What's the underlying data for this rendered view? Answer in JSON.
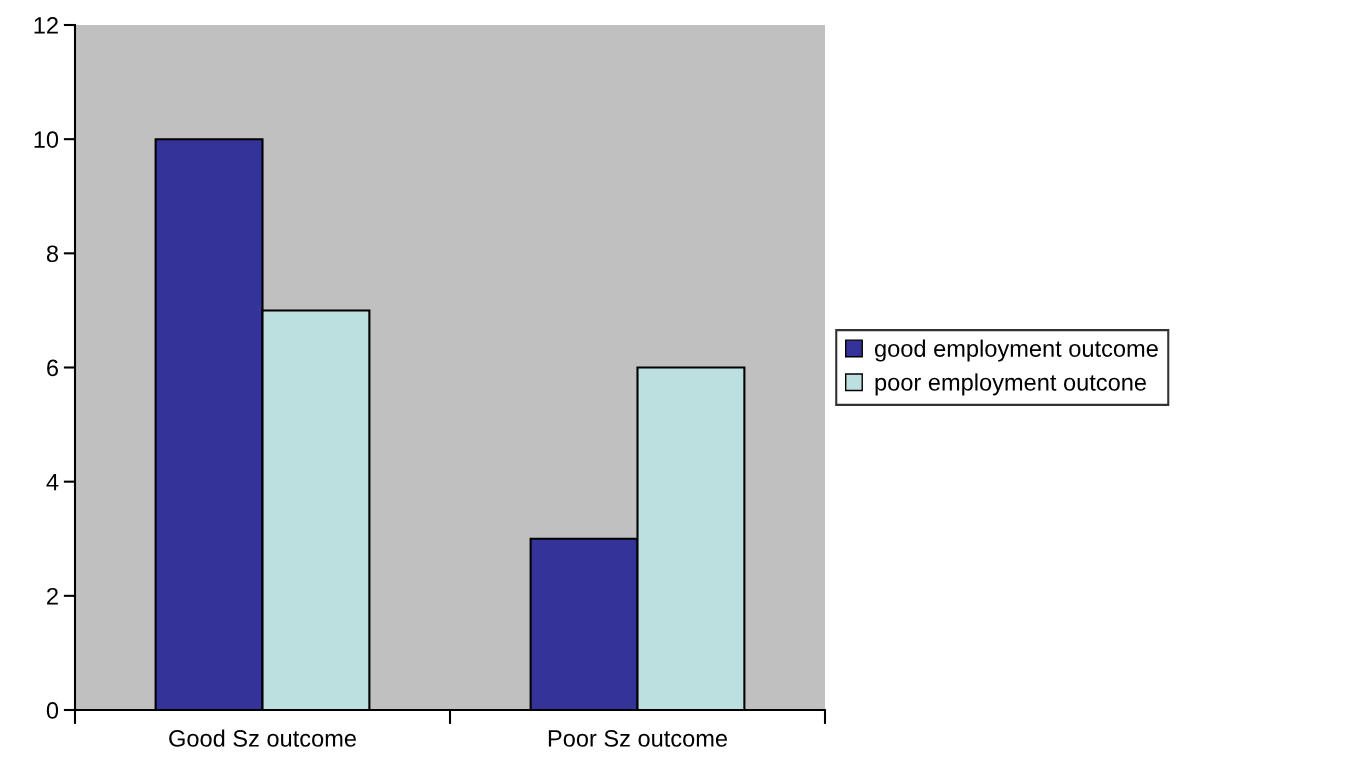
{
  "chart_data": {
    "type": "bar",
    "categories": [
      "Good Sz outcome",
      "Poor Sz outcome"
    ],
    "series": [
      {
        "name": "good employment outcome",
        "color": "#333399",
        "values": [
          10,
          3
        ]
      },
      {
        "name": "poor employment outcone",
        "color": "#bce0e0",
        "values": [
          7,
          6
        ]
      }
    ],
    "ylim": [
      0,
      12
    ],
    "yticks": [
      0,
      2,
      4,
      6,
      8,
      10,
      12
    ],
    "grid": false,
    "legend": "right"
  }
}
